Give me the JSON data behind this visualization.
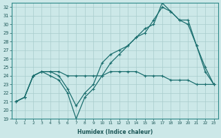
{
  "xlabel": "Humidex (Indice chaleur)",
  "ylabel": "",
  "xlim": [
    -0.5,
    23.5
  ],
  "ylim": [
    19,
    32.5
  ],
  "yticks": [
    19,
    20,
    21,
    22,
    23,
    24,
    25,
    26,
    27,
    28,
    29,
    30,
    31,
    32
  ],
  "xticks": [
    0,
    1,
    2,
    3,
    4,
    5,
    6,
    7,
    8,
    9,
    10,
    11,
    12,
    13,
    14,
    15,
    16,
    17,
    18,
    19,
    20,
    21,
    22,
    23
  ],
  "bg_color": "#cce8e8",
  "grid_color": "#a8cccc",
  "line_color": "#1a6e6e",
  "line1_x": [
    0,
    1,
    2,
    3,
    4,
    5,
    6,
    7,
    8,
    9,
    10,
    11,
    12,
    13,
    14,
    15,
    16,
    17,
    18,
    19,
    20,
    21,
    22,
    23
  ],
  "line1_y": [
    21.0,
    21.5,
    24.0,
    24.5,
    24.5,
    24.0,
    22.5,
    20.5,
    22.0,
    23.0,
    25.5,
    26.5,
    27.0,
    27.5,
    28.5,
    29.0,
    30.5,
    32.0,
    31.5,
    30.5,
    30.5,
    27.5,
    25.0,
    23.0
  ],
  "line2_x": [
    0,
    1,
    2,
    3,
    4,
    5,
    6,
    7,
    8,
    9,
    10,
    11,
    12,
    13,
    14,
    15,
    16,
    17,
    18,
    19,
    20,
    21,
    22,
    23
  ],
  "line2_y": [
    21.0,
    21.5,
    24.0,
    24.5,
    24.0,
    23.5,
    22.0,
    19.0,
    21.5,
    22.5,
    24.0,
    25.5,
    26.5,
    27.5,
    28.5,
    29.5,
    30.0,
    32.5,
    31.5,
    30.5,
    30.0,
    27.5,
    24.5,
    23.0
  ],
  "line3_x": [
    0,
    1,
    2,
    3,
    4,
    5,
    6,
    7,
    8,
    9,
    10,
    11,
    12,
    13,
    14,
    15,
    16,
    17,
    18,
    19,
    20,
    21,
    22,
    23
  ],
  "line3_y": [
    21.0,
    21.5,
    24.0,
    24.5,
    24.5,
    24.5,
    24.0,
    24.0,
    24.0,
    24.0,
    24.0,
    24.5,
    24.5,
    24.5,
    24.5,
    24.0,
    24.0,
    24.0,
    23.5,
    23.5,
    23.5,
    23.0,
    23.0,
    23.0
  ]
}
